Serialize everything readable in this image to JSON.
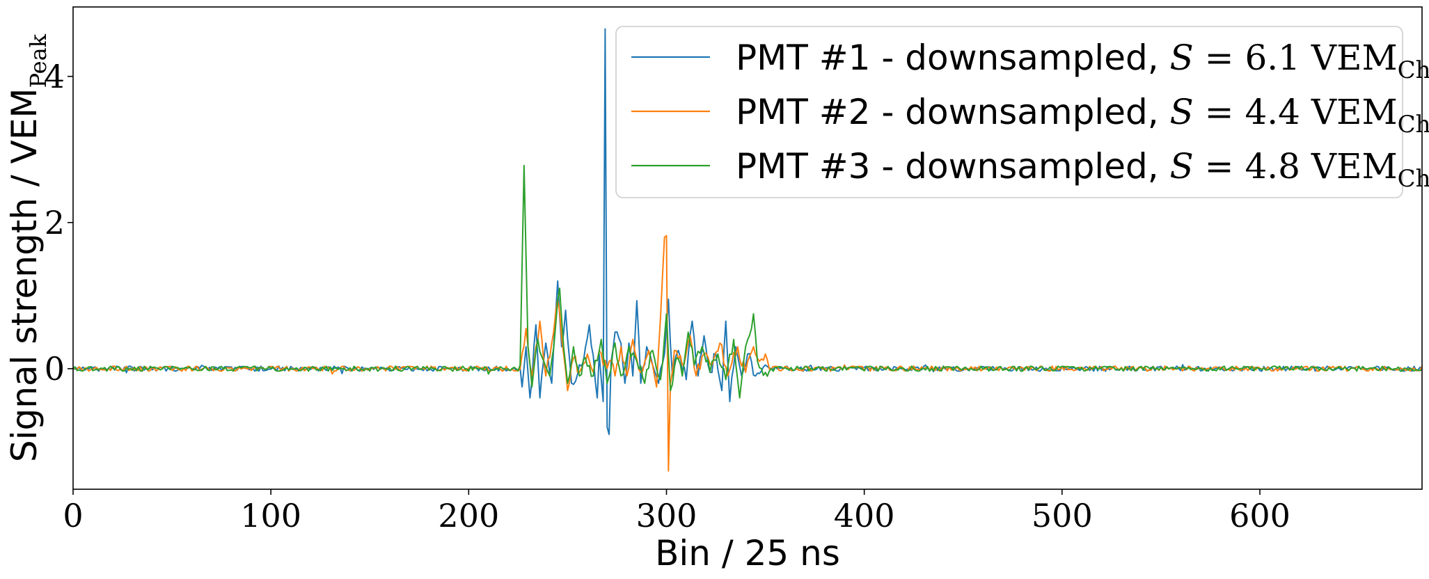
{
  "chart_data": {
    "type": "line",
    "xlabel": "Bin / 25 ns",
    "ylabel": "Signal strength / VEM",
    "ylabel_sub": "Peak",
    "xlim": [
      0,
      682
    ],
    "ylim": [
      -1.65,
      4.95
    ],
    "x_ticks": [
      0,
      100,
      200,
      300,
      400,
      500,
      600
    ],
    "y_ticks": [
      0,
      2,
      4
    ],
    "grid": false,
    "legend": "top-right",
    "series": [
      {
        "name": "PMT #1 - downsampled, S = 6.1 VEM_Ch.",
        "label_text": "PMT #1 - downsampled, ",
        "label_s_value": "6.1",
        "color": "#1f77b4",
        "peaks": [
          [
            227,
            -0.25
          ],
          [
            229,
            0.3
          ],
          [
            231,
            -0.4
          ],
          [
            234,
            0.6
          ],
          [
            236,
            -0.4
          ],
          [
            239,
            0.35
          ],
          [
            242,
            -0.2
          ],
          [
            245,
            1.2
          ],
          [
            247,
            0.3
          ],
          [
            249,
            0.8
          ],
          [
            252,
            -0.2
          ],
          [
            258,
            0.1
          ],
          [
            261,
            0.6
          ],
          [
            265,
            -0.4
          ],
          [
            266,
            0.2
          ],
          [
            268,
            -0.45
          ],
          [
            269,
            4.65
          ],
          [
            270,
            -0.8
          ],
          [
            271,
            -0.9
          ],
          [
            272,
            0.1
          ],
          [
            274,
            0.5
          ],
          [
            277,
            0.35
          ],
          [
            279,
            -0.2
          ],
          [
            281,
            0.35
          ],
          [
            283,
            -0.1
          ],
          [
            285,
            0.93
          ],
          [
            287,
            -0.2
          ],
          [
            290,
            0.3
          ],
          [
            293,
            0.05
          ],
          [
            296,
            -0.2
          ],
          [
            299,
            0.2
          ],
          [
            301,
            0.95
          ],
          [
            303,
            -0.1
          ],
          [
            306,
            0.25
          ],
          [
            310,
            -0.15
          ],
          [
            313,
            0.65
          ],
          [
            316,
            -0.1
          ],
          [
            319,
            0.45
          ],
          [
            322,
            -0.05
          ],
          [
            325,
            0.2
          ],
          [
            328,
            -0.3
          ],
          [
            330,
            0.65
          ],
          [
            332,
            -0.45
          ],
          [
            335,
            0.3
          ],
          [
            338,
            -0.1
          ],
          [
            341,
            0.2
          ],
          [
            345,
            -0.1
          ],
          [
            350,
            0.05
          ],
          [
            353,
            0
          ]
        ]
      },
      {
        "name": "PMT #2 - downsampled, S = 4.4 VEM_Ch.",
        "label_text": "PMT #2 - downsampled, ",
        "label_s_value": "4.4",
        "color": "#ff7f0e",
        "peaks": [
          [
            227,
            0.2
          ],
          [
            229,
            0.55
          ],
          [
            232,
            -0.1
          ],
          [
            236,
            0.65
          ],
          [
            239,
            -0.1
          ],
          [
            242,
            0.35
          ],
          [
            245,
            0.95
          ],
          [
            248,
            0.2
          ],
          [
            250,
            -0.3
          ],
          [
            253,
            0.15
          ],
          [
            256,
            -0.05
          ],
          [
            260,
            0.2
          ],
          [
            263,
            -0.05
          ],
          [
            266,
            0.25
          ],
          [
            268,
            0.05
          ],
          [
            271,
            0.1
          ],
          [
            274,
            -0.1
          ],
          [
            277,
            0.3
          ],
          [
            280,
            -0.1
          ],
          [
            283,
            0.4
          ],
          [
            287,
            -0.05
          ],
          [
            291,
            0.25
          ],
          [
            295,
            -0.25
          ],
          [
            299,
            1.8
          ],
          [
            300,
            1.82
          ],
          [
            301,
            -1.4
          ],
          [
            302,
            -0.2
          ],
          [
            304,
            0.25
          ],
          [
            308,
            0.05
          ],
          [
            312,
            0.45
          ],
          [
            315,
            -0.1
          ],
          [
            319,
            0.2
          ],
          [
            323,
            0.05
          ],
          [
            327,
            0.35
          ],
          [
            331,
            -0.1
          ],
          [
            336,
            0.3
          ],
          [
            340,
            -0.05
          ],
          [
            344,
            0.3
          ],
          [
            347,
            0.1
          ],
          [
            350,
            0.2
          ],
          [
            353,
            0
          ]
        ]
      },
      {
        "name": "PMT #3 - downsampled, S = 4.8 VEM_Ch.",
        "label_text": "PMT #3 - downsampled, ",
        "label_s_value": "4.8",
        "color": "#2ca02c",
        "peaks": [
          [
            226,
            0.05
          ],
          [
            228,
            2.78
          ],
          [
            230,
            0.3
          ],
          [
            232,
            -0.25
          ],
          [
            235,
            0.4
          ],
          [
            238,
            0.1
          ],
          [
            241,
            -0.1
          ],
          [
            244,
            0.6
          ],
          [
            246,
            1.1
          ],
          [
            248,
            0.3
          ],
          [
            250,
            -0.2
          ],
          [
            253,
            0.3
          ],
          [
            256,
            -0.1
          ],
          [
            259,
            0.15
          ],
          [
            263,
            -0.1
          ],
          [
            267,
            0.4
          ],
          [
            270,
            -0.2
          ],
          [
            274,
            0.35
          ],
          [
            277,
            -0.1
          ],
          [
            281,
            0.3
          ],
          [
            285,
            0.1
          ],
          [
            289,
            -0.2
          ],
          [
            293,
            0.25
          ],
          [
            297,
            -0.15
          ],
          [
            300,
            0.75
          ],
          [
            302,
            -0.3
          ],
          [
            305,
            0.15
          ],
          [
            308,
            -0.1
          ],
          [
            311,
            0.5
          ],
          [
            314,
            0.05
          ],
          [
            318,
            0.3
          ],
          [
            322,
            -0.05
          ],
          [
            326,
            0.2
          ],
          [
            330,
            -0.15
          ],
          [
            334,
            0.4
          ],
          [
            337,
            -0.4
          ],
          [
            340,
            0.3
          ],
          [
            344,
            0.75
          ],
          [
            346,
            0.1
          ],
          [
            350,
            -0.05
          ],
          [
            353,
            0
          ]
        ]
      }
    ]
  }
}
